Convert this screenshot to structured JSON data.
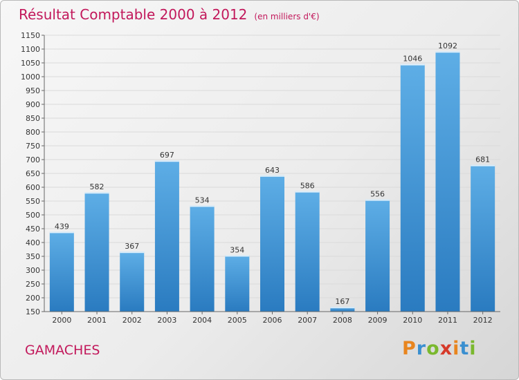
{
  "chart_data": {
    "type": "bar",
    "title": "Résultat Comptable 2000 à 2012",
    "subtitle": "(en milliers d'€)",
    "categories": [
      "2000",
      "2001",
      "2002",
      "2003",
      "2004",
      "2005",
      "2006",
      "2007",
      "2008",
      "2009",
      "2010",
      "2011",
      "2012"
    ],
    "values": [
      439,
      582,
      367,
      697,
      534,
      354,
      643,
      586,
      167,
      556,
      1046,
      1092,
      681
    ],
    "ylim": [
      150,
      1150
    ],
    "yticks": [
      150,
      200,
      250,
      300,
      350,
      400,
      450,
      500,
      550,
      600,
      650,
      700,
      750,
      800,
      850,
      900,
      950,
      1000,
      1050,
      1100,
      1150
    ],
    "grid": true,
    "bar_color": "#4a9ad8"
  },
  "location": "GAMACHES",
  "logo": {
    "letters": [
      "P",
      "r",
      "o",
      "x",
      "i",
      "t",
      "i"
    ],
    "colors": [
      "#e8851e",
      "#3a8fd0",
      "#7ab82e",
      "#d63a2a",
      "#e8851e",
      "#3a8fd0",
      "#7ab82e"
    ]
  }
}
